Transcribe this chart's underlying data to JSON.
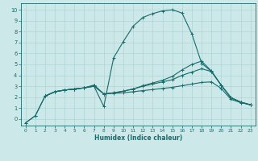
{
  "title": "",
  "xlabel": "Humidex (Indice chaleur)",
  "bg_color": "#cce8e8",
  "line_color": "#1a6b6b",
  "grid_color": "#aad0d0",
  "xlim": [
    -0.5,
    23.5
  ],
  "ylim": [
    -0.6,
    10.6
  ],
  "xticks": [
    0,
    1,
    2,
    3,
    4,
    5,
    6,
    7,
    8,
    9,
    10,
    11,
    12,
    13,
    14,
    15,
    16,
    17,
    18,
    19,
    20,
    21,
    22,
    23
  ],
  "yticks": [
    0,
    1,
    2,
    3,
    4,
    5,
    6,
    7,
    8,
    9,
    10
  ],
  "lines": [
    {
      "x": [
        0,
        1,
        2,
        3,
        4,
        5,
        6,
        7,
        8,
        9,
        10,
        11,
        12,
        13,
        14,
        15,
        16,
        17,
        18,
        19,
        20,
        21,
        22,
        23
      ],
      "y": [
        -0.35,
        0.3,
        2.1,
        2.5,
        2.65,
        2.75,
        2.85,
        3.0,
        1.15,
        5.6,
        7.1,
        8.5,
        9.3,
        9.65,
        9.9,
        10.0,
        9.7,
        7.8,
        5.1,
        4.35,
        3.1,
        1.95,
        1.55,
        1.3
      ]
    },
    {
      "x": [
        0,
        1,
        2,
        3,
        4,
        5,
        6,
        7,
        8,
        9,
        10,
        11,
        12,
        13,
        14,
        15,
        16,
        17,
        18,
        19,
        20,
        21,
        22,
        23
      ],
      "y": [
        -0.35,
        0.3,
        2.1,
        2.5,
        2.65,
        2.75,
        2.85,
        3.0,
        2.3,
        2.4,
        2.55,
        2.75,
        3.05,
        3.3,
        3.55,
        3.9,
        4.5,
        5.0,
        5.3,
        4.4,
        3.1,
        1.95,
        1.55,
        1.3
      ]
    },
    {
      "x": [
        2,
        3,
        4,
        5,
        6,
        7,
        8,
        9,
        10,
        11,
        12,
        13,
        14,
        15,
        16,
        17,
        18,
        19,
        20,
        21,
        22,
        23
      ],
      "y": [
        2.1,
        2.5,
        2.65,
        2.75,
        2.85,
        3.1,
        2.3,
        2.4,
        2.55,
        2.75,
        3.0,
        3.2,
        3.4,
        3.6,
        4.0,
        4.3,
        4.6,
        4.35,
        3.1,
        1.95,
        1.55,
        1.3
      ]
    },
    {
      "x": [
        2,
        3,
        4,
        5,
        6,
        7,
        8,
        9,
        10,
        11,
        12,
        13,
        14,
        15,
        16,
        17,
        18,
        19,
        20,
        21,
        22,
        23
      ],
      "y": [
        2.1,
        2.5,
        2.65,
        2.75,
        2.85,
        3.1,
        2.3,
        2.35,
        2.4,
        2.5,
        2.6,
        2.7,
        2.8,
        2.9,
        3.05,
        3.2,
        3.35,
        3.4,
        2.8,
        1.8,
        1.5,
        1.3
      ]
    }
  ]
}
